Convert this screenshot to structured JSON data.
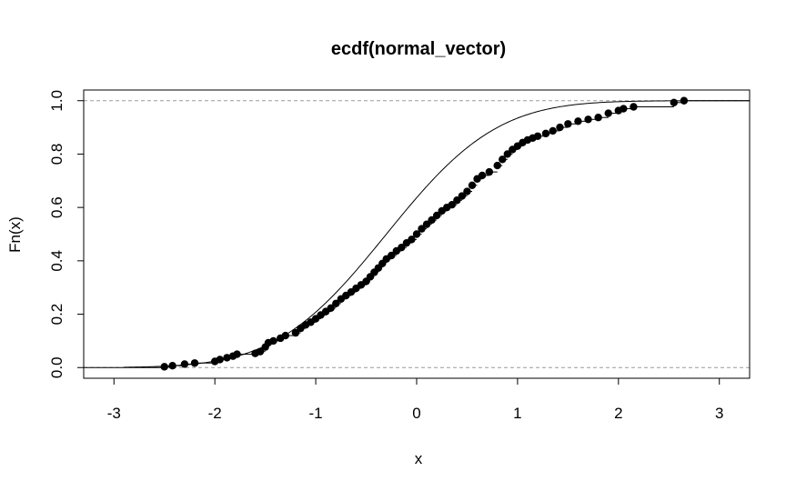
{
  "chart_data": {
    "type": "scatter",
    "title": "ecdf(normal_vector)",
    "xlabel": "x",
    "ylabel": "Fn(x)",
    "xlim": [
      -3.3,
      3.3
    ],
    "ylim": [
      -0.04,
      1.04
    ],
    "x_ticks": [
      -3,
      -2,
      -1,
      0,
      1,
      2,
      3
    ],
    "y_ticks": [
      0.0,
      0.2,
      0.4,
      0.6,
      0.8,
      1.0
    ],
    "x_tick_labels": [
      "-3",
      "-2",
      "-1",
      "0",
      "1",
      "2",
      "3"
    ],
    "y_tick_labels": [
      "0.0",
      "0.2",
      "0.4",
      "0.6",
      "0.8",
      "1.0"
    ],
    "reference_lines": [
      0,
      1
    ],
    "series": [
      {
        "kind": "ecdf-points",
        "points": [
          [
            -2.5,
            0.003
          ],
          [
            -2.42,
            0.007
          ],
          [
            -2.3,
            0.013
          ],
          [
            -2.2,
            0.017
          ],
          [
            -2.0,
            0.023
          ],
          [
            -1.95,
            0.03
          ],
          [
            -1.88,
            0.037
          ],
          [
            -1.82,
            0.043
          ],
          [
            -1.78,
            0.05
          ],
          [
            -1.6,
            0.053
          ],
          [
            -1.55,
            0.06
          ],
          [
            -1.5,
            0.077
          ],
          [
            -1.47,
            0.093
          ],
          [
            -1.42,
            0.1
          ],
          [
            -1.35,
            0.11
          ],
          [
            -1.3,
            0.12
          ],
          [
            -1.2,
            0.13
          ],
          [
            -1.15,
            0.147
          ],
          [
            -1.1,
            0.16
          ],
          [
            -1.05,
            0.17
          ],
          [
            -1.0,
            0.183
          ],
          [
            -0.95,
            0.197
          ],
          [
            -0.9,
            0.21
          ],
          [
            -0.85,
            0.223
          ],
          [
            -0.8,
            0.24
          ],
          [
            -0.75,
            0.257
          ],
          [
            -0.7,
            0.27
          ],
          [
            -0.65,
            0.283
          ],
          [
            -0.6,
            0.297
          ],
          [
            -0.55,
            0.31
          ],
          [
            -0.5,
            0.323
          ],
          [
            -0.46,
            0.34
          ],
          [
            -0.42,
            0.357
          ],
          [
            -0.38,
            0.373
          ],
          [
            -0.34,
            0.39
          ],
          [
            -0.3,
            0.407
          ],
          [
            -0.25,
            0.42
          ],
          [
            -0.2,
            0.437
          ],
          [
            -0.15,
            0.45
          ],
          [
            -0.1,
            0.467
          ],
          [
            -0.05,
            0.48
          ],
          [
            0.0,
            0.5
          ],
          [
            0.05,
            0.52
          ],
          [
            0.1,
            0.537
          ],
          [
            0.15,
            0.553
          ],
          [
            0.2,
            0.57
          ],
          [
            0.25,
            0.587
          ],
          [
            0.3,
            0.6
          ],
          [
            0.35,
            0.61
          ],
          [
            0.4,
            0.627
          ],
          [
            0.45,
            0.643
          ],
          [
            0.5,
            0.66
          ],
          [
            0.55,
            0.683
          ],
          [
            0.6,
            0.707
          ],
          [
            0.65,
            0.72
          ],
          [
            0.72,
            0.733
          ],
          [
            0.8,
            0.757
          ],
          [
            0.85,
            0.78
          ],
          [
            0.9,
            0.8
          ],
          [
            0.95,
            0.817
          ],
          [
            1.0,
            0.83
          ],
          [
            1.05,
            0.843
          ],
          [
            1.1,
            0.853
          ],
          [
            1.15,
            0.86
          ],
          [
            1.2,
            0.867
          ],
          [
            1.28,
            0.877
          ],
          [
            1.35,
            0.887
          ],
          [
            1.42,
            0.9
          ],
          [
            1.5,
            0.913
          ],
          [
            1.6,
            0.923
          ],
          [
            1.7,
            0.93
          ],
          [
            1.8,
            0.937
          ],
          [
            1.9,
            0.953
          ],
          [
            2.0,
            0.963
          ],
          [
            2.05,
            0.97
          ],
          [
            2.15,
            0.977
          ],
          [
            2.55,
            0.993
          ],
          [
            2.65,
            1.0
          ]
        ]
      },
      {
        "kind": "theoretical-normal-cdf",
        "mean": -0.3,
        "sd": 0.86,
        "x_range": [
          -2.9,
          3.3
        ]
      }
    ]
  }
}
